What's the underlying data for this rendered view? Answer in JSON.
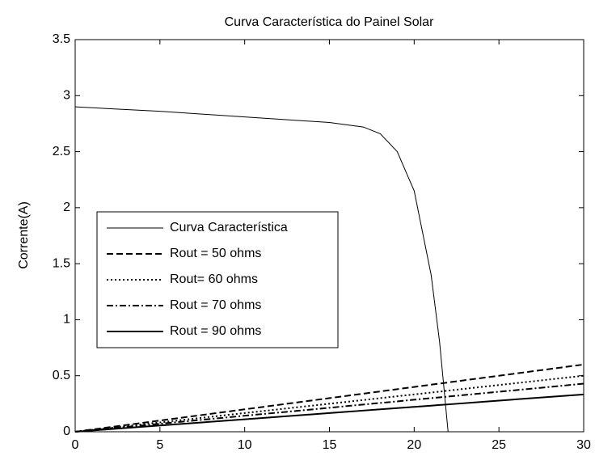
{
  "chart_data": {
    "type": "line",
    "title": "Curva Característica do Painel Solar",
    "ylabel": "Corrente(A)",
    "x": [
      0,
      5,
      10,
      15,
      17,
      18,
      19,
      20,
      21,
      21.5,
      22,
      25,
      30
    ],
    "series": [
      {
        "name": "Curva Característica",
        "color": "#000000",
        "linestyle": "solid",
        "linewidth": 1,
        "values": [
          2.9,
          2.86,
          2.81,
          2.76,
          2.72,
          2.66,
          2.5,
          2.15,
          1.4,
          0.8,
          0,
          null,
          null
        ]
      },
      {
        "name": "Rout = 50 ohms",
        "color": "#000000",
        "linestyle": "dashed",
        "linewidth": 2,
        "values": [
          0,
          0.1,
          0.2,
          0.3,
          0.34,
          0.36,
          0.38,
          0.4,
          0.42,
          0.43,
          0.44,
          0.5,
          0.6
        ]
      },
      {
        "name": "Rout= 60 ohms",
        "color": "#000000",
        "linestyle": "dotted",
        "linewidth": 2,
        "values": [
          0,
          0.083,
          0.167,
          0.25,
          0.283,
          0.3,
          0.317,
          0.333,
          0.35,
          0.358,
          0.367,
          0.417,
          0.5
        ]
      },
      {
        "name": "Rout = 70 ohms",
        "color": "#000000",
        "linestyle": "dashdot",
        "linewidth": 2,
        "values": [
          0,
          0.071,
          0.143,
          0.214,
          0.243,
          0.257,
          0.271,
          0.286,
          0.3,
          0.307,
          0.314,
          0.357,
          0.429
        ]
      },
      {
        "name": "Rout = 90 ohms",
        "color": "#000000",
        "linestyle": "solid",
        "linewidth": 2,
        "values": [
          0,
          0.056,
          0.111,
          0.167,
          0.189,
          0.2,
          0.211,
          0.222,
          0.233,
          0.239,
          0.244,
          0.278,
          0.333
        ]
      }
    ],
    "xlim": [
      0,
      30
    ],
    "xticks": [
      0,
      5,
      10,
      15,
      20,
      25,
      30
    ],
    "ylim": [
      0,
      3.5
    ],
    "yticks": [
      0,
      0.5,
      1,
      1.5,
      2,
      2.5,
      3,
      3.5
    ],
    "legend": "center-left"
  }
}
